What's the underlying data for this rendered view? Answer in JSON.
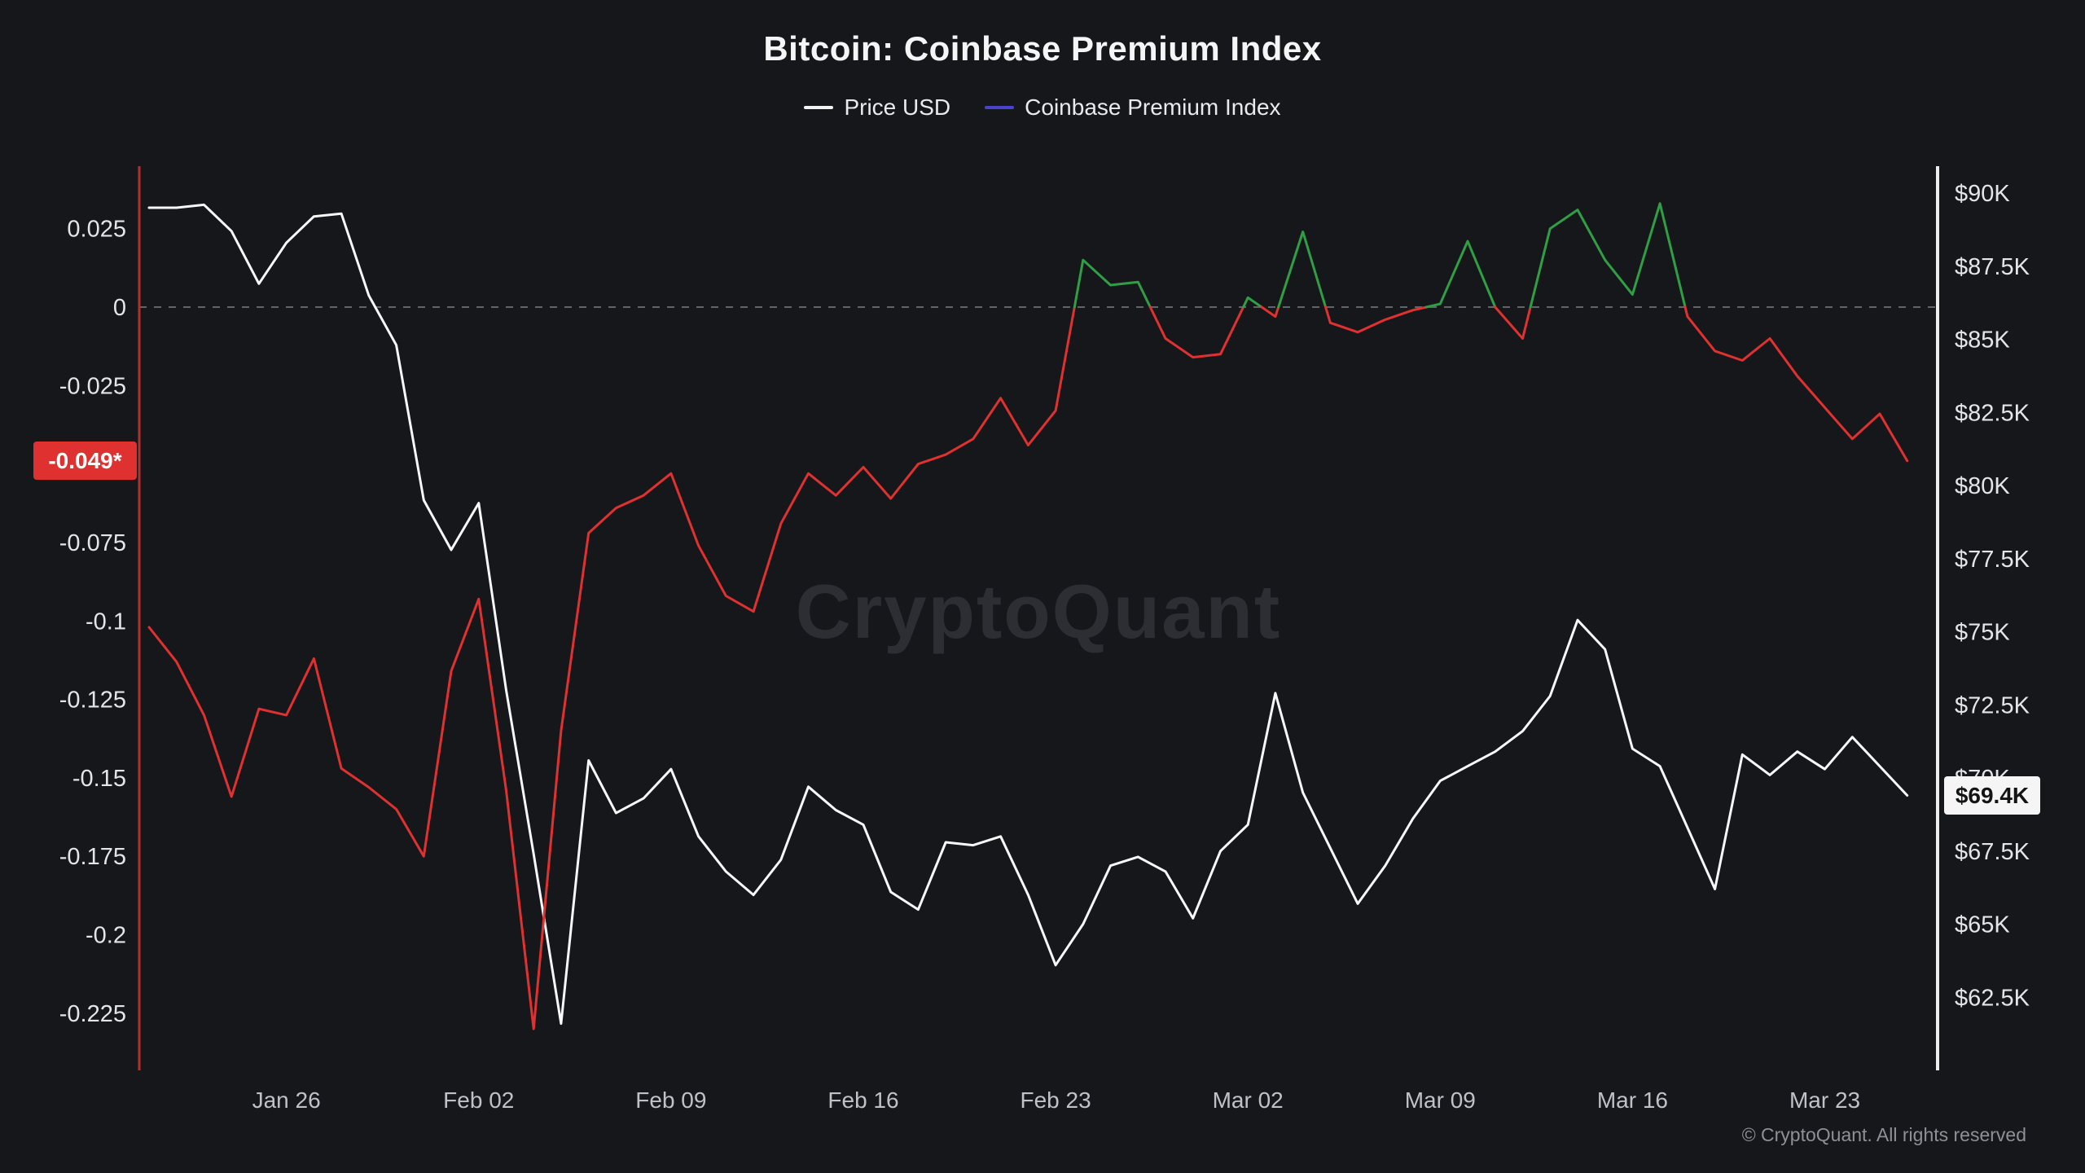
{
  "header": {
    "title": "Bitcoin: Coinbase Premium Index",
    "legend": [
      {
        "label": "Price USD",
        "color": "#f2f3f5"
      },
      {
        "label": "Coinbase Premium Index",
        "color": "#4a43cb"
      }
    ]
  },
  "badges": {
    "premium_current": {
      "text": "-0.049*",
      "value": -0.049,
      "bg": "#e03131",
      "fg": "#ffffff"
    },
    "price_current": {
      "text": "$69.4K",
      "value_k": 69.4,
      "bg": "#f5f5f5",
      "fg": "#141414"
    }
  },
  "watermark": "CryptoQuant",
  "footer": "© CryptoQuant. All rights reserved",
  "chart_data": {
    "type": "line",
    "title": "Bitcoin: Coinbase Premium Index",
    "zero_line_color": "#62646a",
    "x": [
      "Jan 21",
      "Jan 22",
      "Jan 23",
      "Jan 24",
      "Jan 25",
      "Jan 26",
      "Jan 27",
      "Jan 28",
      "Jan 29",
      "Jan 30",
      "Jan 31",
      "Feb 01",
      "Feb 02",
      "Feb 03",
      "Feb 04",
      "Feb 05",
      "Feb 06",
      "Feb 07",
      "Feb 08",
      "Feb 09",
      "Feb 10",
      "Feb 11",
      "Feb 12",
      "Feb 13",
      "Feb 14",
      "Feb 15",
      "Feb 16",
      "Feb 17",
      "Feb 18",
      "Feb 19",
      "Feb 20",
      "Feb 21",
      "Feb 22",
      "Feb 23",
      "Feb 24",
      "Feb 25",
      "Feb 26",
      "Feb 27",
      "Feb 28",
      "Mar 01",
      "Mar 02",
      "Mar 03",
      "Mar 04",
      "Mar 05",
      "Mar 06",
      "Mar 07",
      "Mar 08",
      "Mar 09",
      "Mar 10",
      "Mar 11",
      "Mar 12",
      "Mar 13",
      "Mar 14",
      "Mar 15",
      "Mar 16",
      "Mar 17",
      "Mar 18",
      "Mar 19",
      "Mar 20",
      "Mar 21",
      "Mar 22",
      "Mar 23",
      "Mar 24",
      "Mar 25",
      "Mar 26"
    ],
    "series": [
      {
        "name": "Price USD",
        "axis": "right",
        "unit": "K USD",
        "color": "#f7f8f9",
        "values": [
          89.5,
          89.5,
          89.6,
          88.7,
          86.9,
          88.3,
          89.2,
          89.3,
          86.5,
          84.8,
          79.5,
          77.8,
          79.4,
          73.0,
          67.4,
          61.6,
          70.6,
          68.8,
          69.3,
          70.3,
          68.0,
          66.8,
          66.0,
          67.2,
          69.7,
          68.9,
          68.4,
          66.1,
          65.5,
          67.8,
          67.7,
          68.0,
          66.0,
          63.6,
          65.0,
          67.0,
          67.3,
          66.8,
          65.2,
          67.5,
          68.4,
          72.9,
          69.5,
          67.6,
          65.7,
          67.0,
          68.6,
          69.9,
          70.4,
          70.9,
          71.6,
          72.8,
          75.4,
          74.4,
          71.0,
          70.4,
          68.3,
          66.2,
          70.8,
          70.1,
          70.9,
          70.3,
          71.4,
          70.4,
          69.4
        ]
      },
      {
        "name": "Coinbase Premium Index",
        "axis": "left",
        "color_positive": "#2f9e44",
        "color_negative": "#e03131",
        "values": [
          -0.102,
          -0.113,
          -0.13,
          -0.156,
          -0.128,
          -0.13,
          -0.112,
          -0.147,
          -0.153,
          -0.16,
          -0.175,
          -0.116,
          -0.093,
          -0.154,
          -0.23,
          -0.135,
          -0.072,
          -0.064,
          -0.06,
          -0.053,
          -0.076,
          -0.092,
          -0.097,
          -0.069,
          -0.053,
          -0.06,
          -0.051,
          -0.061,
          -0.05,
          -0.047,
          -0.042,
          -0.029,
          -0.044,
          -0.033,
          0.015,
          0.007,
          0.008,
          -0.01,
          -0.016,
          -0.015,
          0.003,
          -0.003,
          0.024,
          -0.005,
          -0.008,
          -0.004,
          -0.001,
          0.001,
          0.021,
          0.0,
          -0.01,
          0.025,
          0.031,
          0.015,
          0.004,
          0.033,
          -0.003,
          -0.014,
          -0.017,
          -0.01,
          -0.022,
          -0.032,
          -0.042,
          -0.034,
          -0.049
        ]
      }
    ],
    "left_axis": {
      "line_color": "#b22f2f",
      "range": [
        -0.2432,
        0.0449
      ],
      "ticks": [
        {
          "label": "0.025",
          "value": 0.025
        },
        {
          "label": "0",
          "value": 0
        },
        {
          "label": "-0.025",
          "value": -0.025
        },
        {
          "label": "-0.075",
          "value": -0.075
        },
        {
          "label": "-0.1",
          "value": -0.1
        },
        {
          "label": "-0.125",
          "value": -0.125
        },
        {
          "label": "-0.15",
          "value": -0.15
        },
        {
          "label": "-0.175",
          "value": -0.175
        },
        {
          "label": "-0.2",
          "value": -0.2
        },
        {
          "label": "-0.225",
          "value": -0.225
        }
      ],
      "zero_line_dashed": true
    },
    "right_axis": {
      "line_color": "#eceded",
      "range_k": [
        60.0,
        90.92
      ],
      "ticks": [
        {
          "label": "$90K",
          "value_k": 90
        },
        {
          "label": "$87.5K",
          "value_k": 87.5
        },
        {
          "label": "$85K",
          "value_k": 85
        },
        {
          "label": "$82.5K",
          "value_k": 82.5
        },
        {
          "label": "$80K",
          "value_k": 80
        },
        {
          "label": "$77.5K",
          "value_k": 77.5
        },
        {
          "label": "$75K",
          "value_k": 75
        },
        {
          "label": "$72.5K",
          "value_k": 72.5
        },
        {
          "label": "$70K",
          "value_k": 70
        },
        {
          "label": "$67.5K",
          "value_k": 67.5
        },
        {
          "label": "$65K",
          "value_k": 65
        },
        {
          "label": "$62.5K",
          "value_k": 62.5
        }
      ]
    },
    "x_ticks": [
      {
        "label": "Jan 26",
        "index": 5
      },
      {
        "label": "Feb 02",
        "index": 12
      },
      {
        "label": "Feb 09",
        "index": 19
      },
      {
        "label": "Feb 16",
        "index": 26
      },
      {
        "label": "Feb 23",
        "index": 33
      },
      {
        "label": "Mar 02",
        "index": 40
      },
      {
        "label": "Mar 09",
        "index": 47
      },
      {
        "label": "Mar 16",
        "index": 54
      },
      {
        "label": "Mar 23",
        "index": 61
      }
    ],
    "legend_position": "top-center",
    "grid": "off"
  }
}
